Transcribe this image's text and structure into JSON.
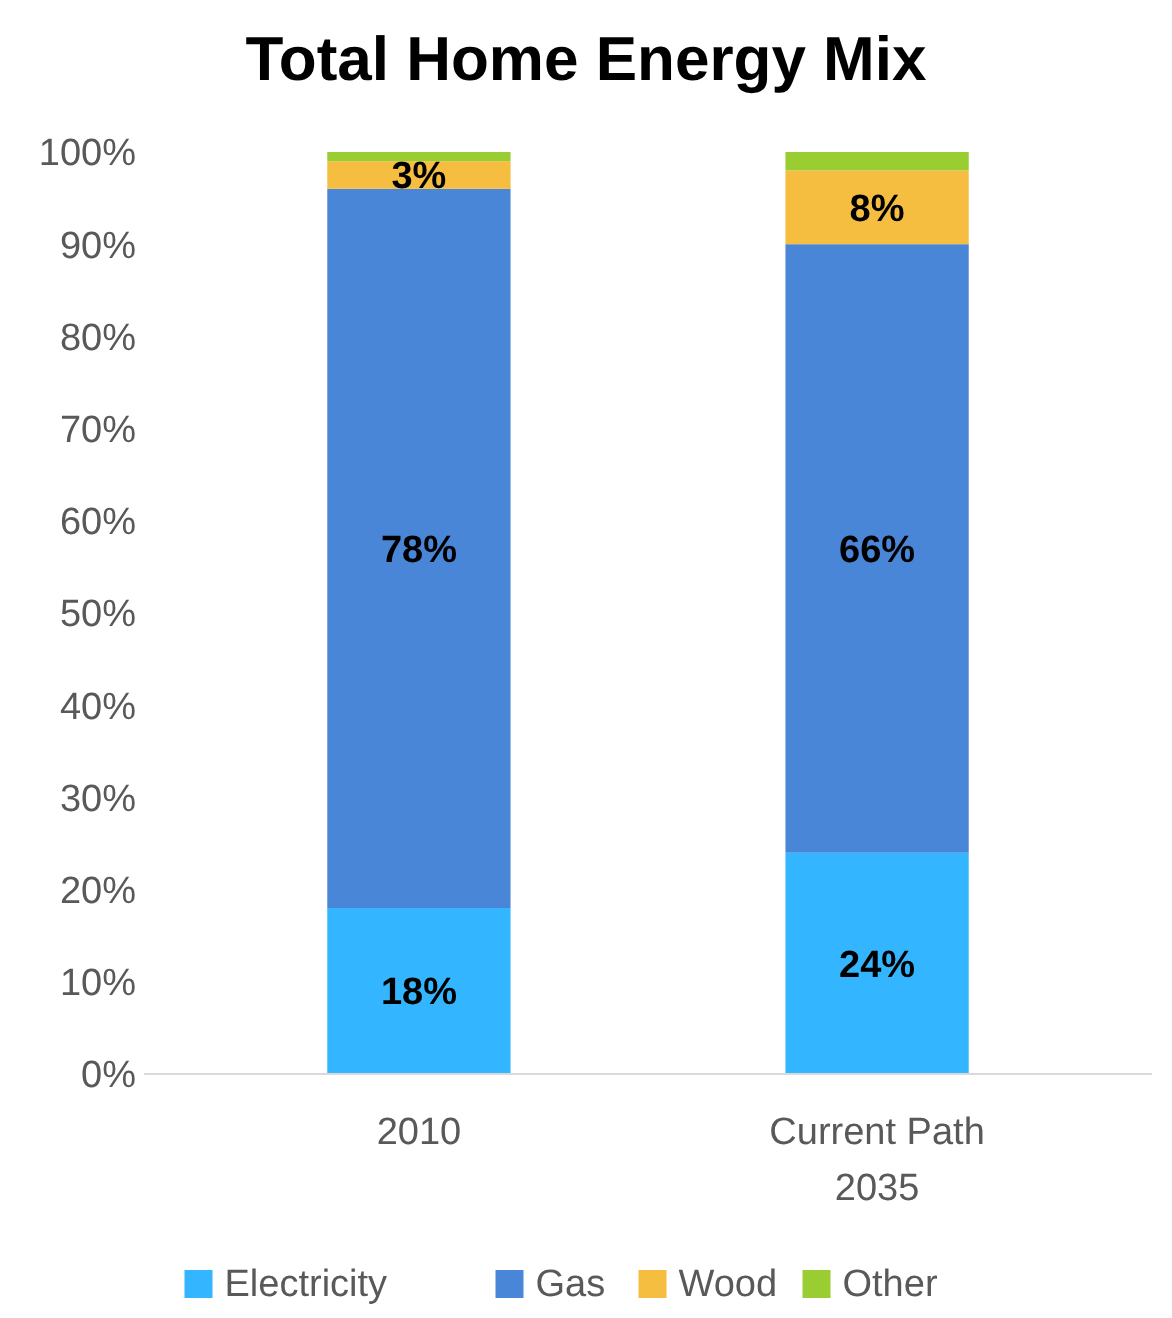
{
  "chart_data": {
    "type": "bar",
    "title": "Total Home Energy Mix",
    "categories": [
      "2010",
      "Current Path 2035"
    ],
    "stacked": true,
    "series": [
      {
        "name": "Electricity",
        "color": "#33b5ff",
        "values": [
          18,
          24
        ],
        "value_labels": [
          "18%",
          "24%"
        ]
      },
      {
        "name": "Gas",
        "color": "#4a86d8",
        "values": [
          78,
          66
        ],
        "value_labels": [
          "78%",
          "66%"
        ]
      },
      {
        "name": "Wood",
        "color": "#f5be41",
        "values": [
          3,
          8
        ],
        "value_labels": [
          "3%",
          "8%"
        ]
      },
      {
        "name": "Other",
        "color": "#9acd32",
        "values": [
          1,
          2
        ],
        "value_labels": [
          null,
          null
        ]
      }
    ],
    "ylim": [
      0,
      100
    ],
    "yticks": [
      {
        "value": 0,
        "label": "0%"
      },
      {
        "value": 10,
        "label": "10%"
      },
      {
        "value": 20,
        "label": "20%"
      },
      {
        "value": 30,
        "label": "30%"
      },
      {
        "value": 40,
        "label": "40%"
      },
      {
        "value": 50,
        "label": "50%"
      },
      {
        "value": 60,
        "label": "60%"
      },
      {
        "value": 70,
        "label": "70%"
      },
      {
        "value": 80,
        "label": "80%"
      },
      {
        "value": 90,
        "label": "90%"
      },
      {
        "value": 100,
        "label": "100%"
      }
    ],
    "grid": false,
    "legend": "bottom"
  }
}
